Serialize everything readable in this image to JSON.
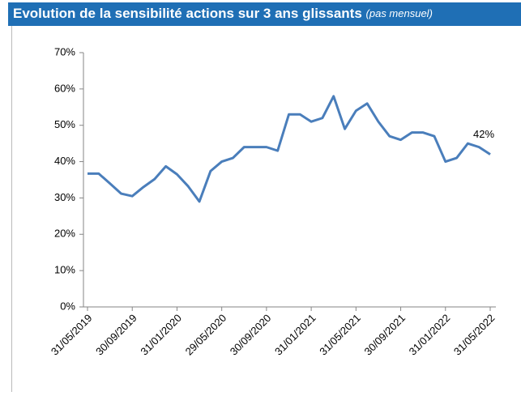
{
  "chart_data": {
    "type": "line",
    "title": "Evolution de la sensibilité actions sur 3 ans glissants",
    "subtitle": "(pas mensuel)",
    "categories": [
      "31/05/2019",
      null,
      null,
      null,
      "30/09/2019",
      null,
      null,
      null,
      "31/01/2020",
      null,
      null,
      null,
      "29/05/2020",
      null,
      null,
      null,
      "30/09/2020",
      null,
      null,
      null,
      "31/01/2021",
      null,
      null,
      null,
      "31/05/2021",
      null,
      null,
      null,
      "30/09/2021",
      null,
      null,
      null,
      "31/01/2022",
      null,
      null,
      null,
      "31/05/2022"
    ],
    "series": [
      {
        "name": "Sensibilité actions",
        "color": "#4a7ebb",
        "values": [
          36.7,
          36.7,
          34,
          31.2,
          30.5,
          33,
          35.2,
          38.7,
          36.5,
          33.2,
          29,
          37.4,
          40,
          41,
          44,
          44,
          44,
          43,
          53,
          53,
          51,
          52,
          58,
          49,
          54,
          56,
          51,
          47,
          46,
          48,
          48,
          47,
          40,
          41,
          45,
          44,
          42
        ],
        "value_labels": [
          null,
          null,
          null,
          null,
          null,
          null,
          null,
          null,
          null,
          null,
          null,
          null,
          null,
          null,
          null,
          null,
          null,
          null,
          null,
          null,
          null,
          null,
          null,
          null,
          null,
          null,
          null,
          null,
          null,
          null,
          null,
          null,
          null,
          null,
          null,
          null,
          "42%"
        ]
      }
    ],
    "ylim": [
      0,
      70
    ],
    "yticks": [
      {
        "value": 0,
        "label": "0%"
      },
      {
        "value": 10,
        "label": "10%"
      },
      {
        "value": 20,
        "label": "20%"
      },
      {
        "value": 30,
        "label": "30%"
      },
      {
        "value": 40,
        "label": "40%"
      },
      {
        "value": 50,
        "label": "50%"
      },
      {
        "value": 60,
        "label": "60%"
      },
      {
        "value": 70,
        "label": "70%"
      }
    ],
    "grid": false
  }
}
